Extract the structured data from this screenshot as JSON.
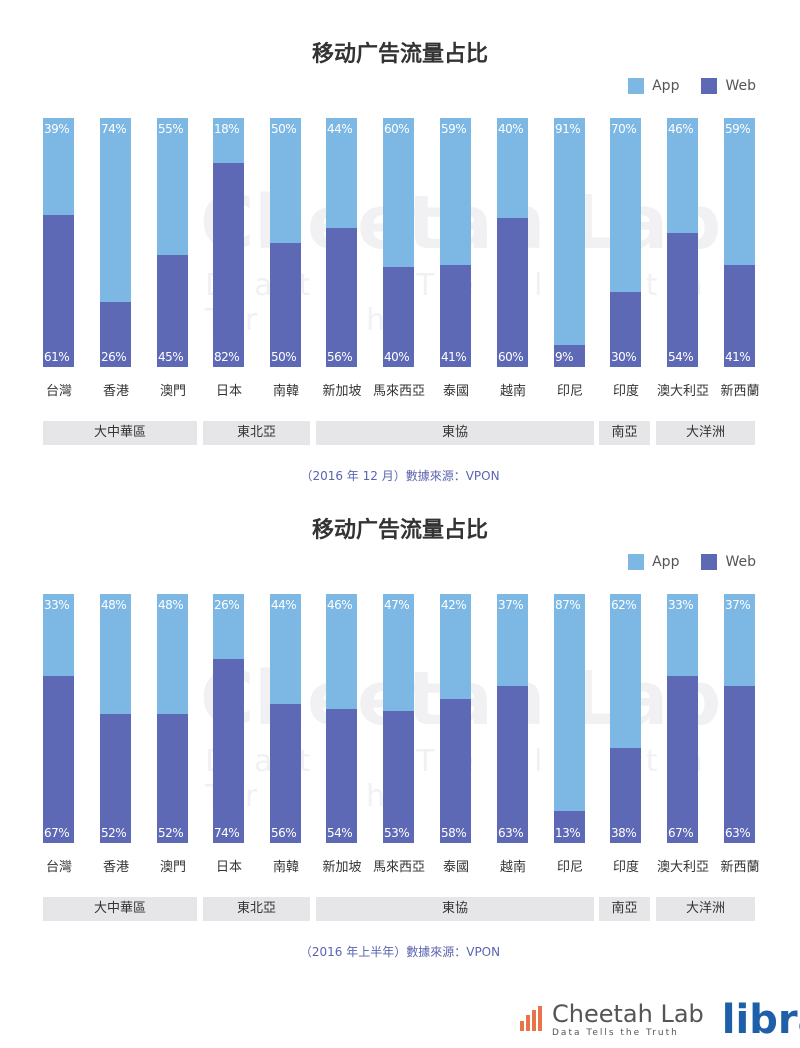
{
  "colors": {
    "app": "#7cb8e3",
    "web": "#5e69b6"
  },
  "legend": {
    "app": "App",
    "web": "Web"
  },
  "watermark": {
    "name": "Cheetah Lab",
    "tagline": "Data Tells the Truth"
  },
  "footer": {
    "brand": "Cheetah Lab",
    "tagline": "Data Tells the Truth",
    "partner": "libra"
  },
  "chart_data": [
    {
      "type": "bar",
      "stacked": true,
      "title": "移动广告流量占比",
      "categories": [
        "台灣",
        "香港",
        "澳門",
        "日本",
        "南韓",
        "新加坡",
        "馬來西亞",
        "泰國",
        "越南",
        "印尼",
        "印度",
        "澳大利亞",
        "新西蘭"
      ],
      "series": [
        {
          "name": "App",
          "values": [
            39,
            74,
            55,
            18,
            50,
            44,
            60,
            59,
            40,
            91,
            70,
            46,
            59
          ]
        },
        {
          "name": "Web",
          "values": [
            61,
            26,
            45,
            82,
            50,
            56,
            40,
            41,
            60,
            9,
            30,
            54,
            41
          ]
        }
      ],
      "regions": [
        {
          "label": "大中華區",
          "span": 3
        },
        {
          "label": "東北亞",
          "span": 2
        },
        {
          "label": "東協",
          "span": 5
        },
        {
          "label": "南亞",
          "span": 1
        },
        {
          "label": "大洋洲",
          "span": 2
        }
      ],
      "source": "（2016 年 12 月）數據來源：VPON",
      "ylim": [
        0,
        100
      ],
      "legend_position": "top-right"
    },
    {
      "type": "bar",
      "stacked": true,
      "title": "移动广告流量占比",
      "categories": [
        "台灣",
        "香港",
        "澳門",
        "日本",
        "南韓",
        "新加坡",
        "馬來西亞",
        "泰國",
        "越南",
        "印尼",
        "印度",
        "澳大利亞",
        "新西蘭"
      ],
      "series": [
        {
          "name": "App",
          "values": [
            33,
            48,
            48,
            26,
            44,
            46,
            47,
            42,
            37,
            87,
            62,
            33,
            37
          ]
        },
        {
          "name": "Web",
          "values": [
            67,
            52,
            52,
            74,
            56,
            54,
            53,
            58,
            63,
            13,
            38,
            67,
            63
          ]
        }
      ],
      "regions": [
        {
          "label": "大中華區",
          "span": 3
        },
        {
          "label": "東北亞",
          "span": 2
        },
        {
          "label": "東協",
          "span": 5
        },
        {
          "label": "南亞",
          "span": 1
        },
        {
          "label": "大洋洲",
          "span": 2
        }
      ],
      "source": "（2016 年上半年）數據來源：VPON",
      "ylim": [
        0,
        100
      ],
      "legend_position": "top-right"
    }
  ]
}
